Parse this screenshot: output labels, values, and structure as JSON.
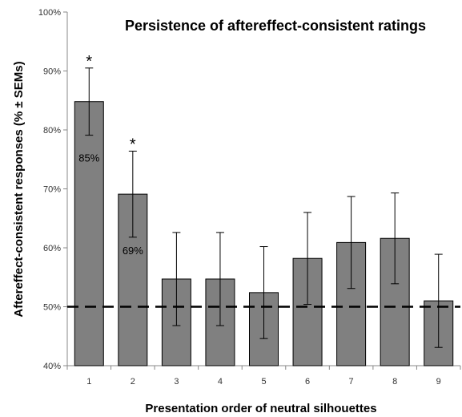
{
  "chart_data": {
    "type": "bar",
    "title": "Persistence of aftereffect-consistent ratings",
    "xlabel": "Presentation order of neutral silhouettes",
    "ylabel": "Aftereffect-consistent responses (% ± SEMs)",
    "categories": [
      "1",
      "2",
      "3",
      "4",
      "5",
      "6",
      "7",
      "8",
      "9"
    ],
    "values": [
      84.8,
      69.1,
      54.7,
      54.7,
      52.4,
      58.2,
      60.9,
      61.6,
      51.0
    ],
    "errors": [
      5.7,
      7.3,
      7.9,
      7.9,
      7.8,
      7.8,
      7.8,
      7.7,
      7.9
    ],
    "data_labels": [
      "85%",
      "69%",
      "",
      "",
      "",
      "",
      "",
      "",
      ""
    ],
    "significance": [
      "*",
      "*",
      "",
      "",
      "",
      "",
      "",
      "",
      ""
    ],
    "ylim": [
      40,
      100
    ],
    "yticks": [
      40,
      50,
      60,
      70,
      80,
      90,
      100
    ],
    "ytick_labels": [
      "40%",
      "50%",
      "60%",
      "70%",
      "80%",
      "90%",
      "100%"
    ],
    "reference_line": 50,
    "grid": false,
    "bar_color": "#808080",
    "bar_edge_color": "#000000"
  }
}
